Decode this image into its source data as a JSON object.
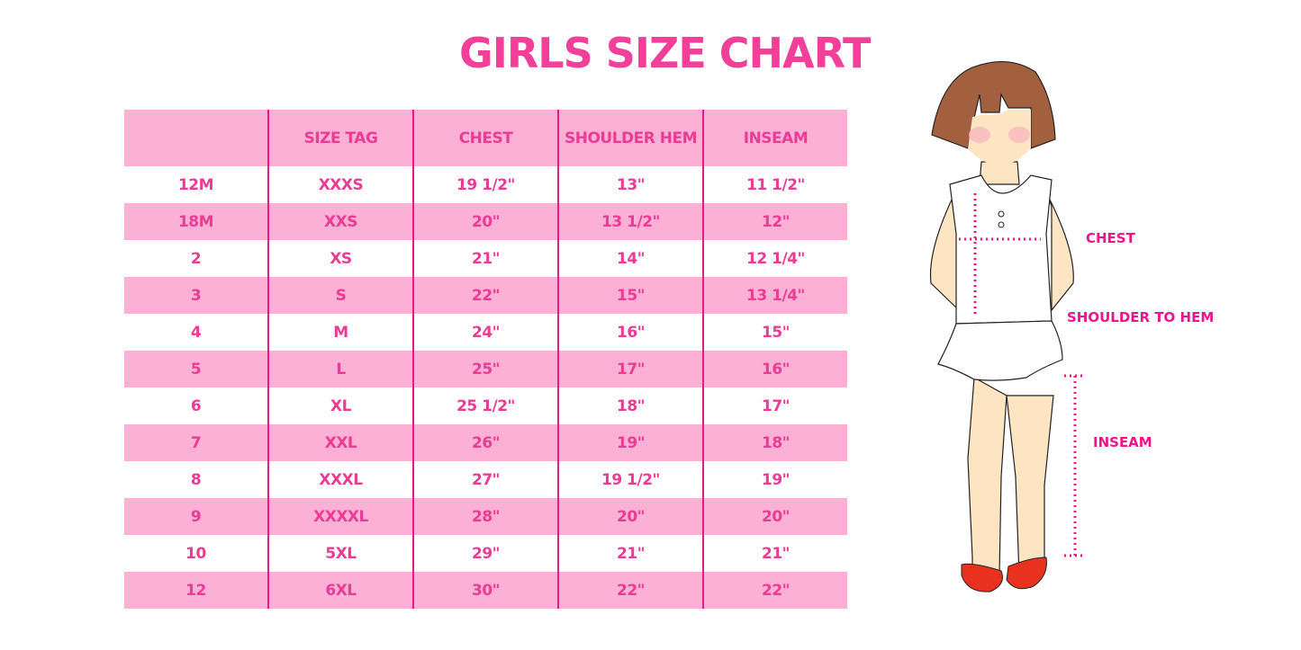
{
  "title": "GIRLS SIZE CHART",
  "table": {
    "headers": [
      "",
      "SIZE TAG",
      "CHEST",
      "SHOULDER HEM",
      "INSEAM"
    ],
    "rows": [
      [
        "12M",
        "XXXS",
        "19 1/2\"",
        "13\"",
        "11 1/2\""
      ],
      [
        "18M",
        "XXS",
        "20\"",
        "13 1/2\"",
        "12\""
      ],
      [
        "2",
        "XS",
        "21\"",
        "14\"",
        "12 1/4\""
      ],
      [
        "3",
        "S",
        "22\"",
        "15\"",
        "13 1/4\""
      ],
      [
        "4",
        "M",
        "24\"",
        "16\"",
        "15\""
      ],
      [
        "5",
        "L",
        "25\"",
        "17\"",
        "16\""
      ],
      [
        "6",
        "XL",
        "25 1/2\"",
        "18\"",
        "17\""
      ],
      [
        "7",
        "XXL",
        "26\"",
        "19\"",
        "18\""
      ],
      [
        "8",
        "XXXL",
        "27\"",
        "19 1/2\"",
        "19\""
      ],
      [
        "9",
        "XXXXL",
        "28\"",
        "20\"",
        "20\""
      ],
      [
        "10",
        "5XL",
        "29\"",
        "21\"",
        "21\""
      ],
      [
        "12",
        "6XL",
        "30\"",
        "22\"",
        "22\""
      ]
    ]
  },
  "figure": {
    "labels": {
      "chest": "CHEST",
      "shoulder": "SHOULDER TO HEM",
      "inseam": "INSEAM"
    }
  },
  "colors": {
    "accent": "#f2409a",
    "row_pink": "#fdb0d6",
    "divider": "#e8198b",
    "measure": "#f0148c"
  }
}
